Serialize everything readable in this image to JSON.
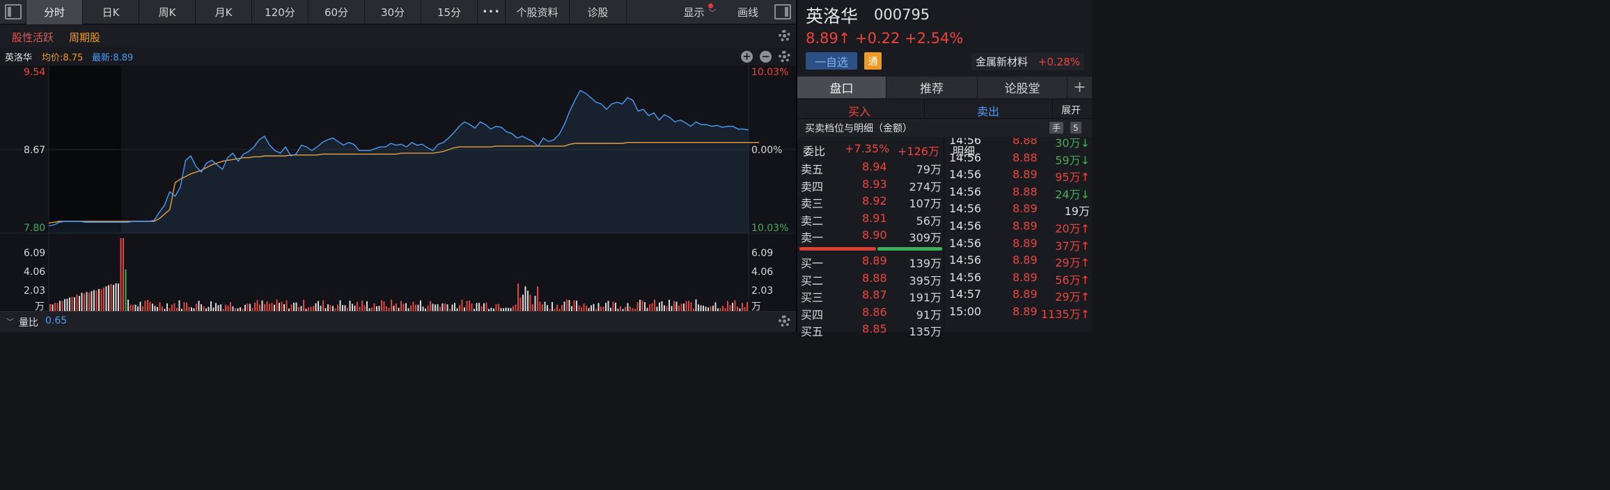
{
  "toolbar": {
    "tabs": [
      "分时",
      "日K",
      "周K",
      "月K",
      "120分",
      "60分",
      "30分",
      "15分"
    ],
    "more": "•••",
    "links": [
      "个股资料",
      "诊股"
    ],
    "display": "显示",
    "draw": "画线"
  },
  "tags": [
    "股性活跃",
    "周期股"
  ],
  "chart_header": {
    "name": "英洛华",
    "avg_label": "均价:8.75",
    "latest_label": "最新:8.89"
  },
  "axes": {
    "price_top": "9.54",
    "price_mid": "8.67",
    "price_low": "7.80",
    "pct_top": "10.03%",
    "pct_mid": "0.00%",
    "pct_low": "10.03%",
    "vol_left": [
      "6.09",
      "4.06",
      "2.03",
      "万"
    ],
    "vol_right": [
      "6.09",
      "4.06",
      "2.03",
      "万"
    ]
  },
  "bottom": {
    "label": "量比",
    "value": "0.65"
  },
  "stock": {
    "name": "英洛华",
    "code": "000795",
    "price_line": "8.89↑ +0.22 +2.54%",
    "fav_button": "一自选",
    "tong_badge": "通",
    "sector_name": "金属新材料",
    "sector_change": "+0.28%"
  },
  "right_tabs": [
    "盘口",
    "推荐",
    "论股堂"
  ],
  "add_tab": "+",
  "trade": {
    "buy": "买入",
    "sell": "卖出",
    "expand": "展开"
  },
  "book_head": {
    "title": "买卖档位与明细（金额）",
    "hand": "手",
    "five": "5"
  },
  "ratio": {
    "label": "委比",
    "pct": "+7.35%",
    "amount": "+126万",
    "detail": "明细"
  },
  "asks": [
    {
      "label": "卖五",
      "price": "8.94",
      "amount": "79万"
    },
    {
      "label": "卖四",
      "price": "8.93",
      "amount": "274万"
    },
    {
      "label": "卖三",
      "price": "8.92",
      "amount": "107万"
    },
    {
      "label": "卖二",
      "price": "8.91",
      "amount": "56万"
    },
    {
      "label": "卖一",
      "price": "8.90",
      "amount": "309万"
    }
  ],
  "bids": [
    {
      "label": "买一",
      "price": "8.89",
      "amount": "139万"
    },
    {
      "label": "买二",
      "price": "8.88",
      "amount": "395万"
    },
    {
      "label": "买三",
      "price": "8.87",
      "amount": "191万"
    },
    {
      "label": "买四",
      "price": "8.86",
      "amount": "91万"
    },
    {
      "label": "买五",
      "price": "8.85",
      "amount": "135万"
    }
  ],
  "ticks": [
    {
      "time": "14:56",
      "price": "8.88",
      "amount": "30万",
      "dir": "↓",
      "color": "#f0433a",
      "acolor": "#3fae5a"
    },
    {
      "time": "14:56",
      "price": "8.88",
      "amount": "59万",
      "dir": "↓",
      "color": "#f0433a",
      "acolor": "#3fae5a"
    },
    {
      "time": "14:56",
      "price": "8.89",
      "amount": "95万",
      "dir": "↑",
      "color": "#f0433a",
      "acolor": "#f0433a"
    },
    {
      "time": "14:56",
      "price": "8.88",
      "amount": "24万",
      "dir": "↓",
      "color": "#f0433a",
      "acolor": "#3fae5a"
    },
    {
      "time": "14:56",
      "price": "8.89",
      "amount": "19万",
      "dir": "",
      "color": "#f0433a",
      "acolor": "#e0e0e0"
    },
    {
      "time": "14:56",
      "price": "8.89",
      "amount": "20万",
      "dir": "↑",
      "color": "#f0433a",
      "acolor": "#f0433a"
    },
    {
      "time": "14:56",
      "price": "8.89",
      "amount": "37万",
      "dir": "↑",
      "color": "#f0433a",
      "acolor": "#f0433a"
    },
    {
      "time": "14:56",
      "price": "8.89",
      "amount": "29万",
      "dir": "↑",
      "color": "#f0433a",
      "acolor": "#f0433a"
    },
    {
      "time": "14:56",
      "price": "8.89",
      "amount": "56万",
      "dir": "↑",
      "color": "#f0433a",
      "acolor": "#f0433a"
    },
    {
      "time": "14:57",
      "price": "8.89",
      "amount": "29万",
      "dir": "↑",
      "color": "#f0433a",
      "acolor": "#f0433a"
    },
    {
      "time": "15:00",
      "price": "8.89",
      "amount": "1135万",
      "dir": "↑",
      "color": "#f0433a",
      "acolor": "#f0433a"
    }
  ],
  "colors": {
    "up": "#f0433a",
    "down": "#3fae5a",
    "line": "#4a9cf5",
    "avg": "#e8a040",
    "orange": "#f09a26",
    "blue": "#4a9cf5"
  },
  "chart_data": {
    "type": "line",
    "price_range": [
      7.8,
      9.54
    ],
    "prev_close": 8.67,
    "series": [
      {
        "name": "最新",
        "values": [
          7.82,
          7.83,
          7.86,
          7.87,
          7.87,
          7.87,
          7.87,
          7.86,
          7.86,
          7.86,
          7.86,
          7.86,
          7.86,
          7.86,
          7.86,
          7.86,
          7.87,
          7.87,
          7.87,
          7.87,
          7.88,
          7.97,
          8.05,
          8.2,
          8.15,
          8.25,
          8.55,
          8.6,
          8.48,
          8.42,
          8.52,
          8.55,
          8.5,
          8.45,
          8.58,
          8.63,
          8.54,
          8.62,
          8.65,
          8.7,
          8.78,
          8.82,
          8.72,
          8.66,
          8.63,
          8.7,
          8.6,
          8.62,
          8.72,
          8.7,
          8.66,
          8.7,
          8.75,
          8.78,
          8.8,
          8.76,
          8.72,
          8.75,
          8.73,
          8.66,
          8.66,
          8.66,
          8.68,
          8.7,
          8.7,
          8.74,
          8.72,
          8.73,
          8.7,
          8.75,
          8.72,
          8.73,
          8.69,
          8.66,
          8.73,
          8.75,
          8.8,
          8.86,
          8.93,
          8.98,
          8.95,
          8.91,
          8.98,
          8.95,
          8.9,
          8.93,
          8.92,
          8.87,
          8.85,
          8.8,
          8.82,
          8.79,
          8.76,
          8.71,
          8.8,
          8.76,
          8.78,
          8.84,
          8.95,
          9.1,
          9.22,
          9.33,
          9.3,
          9.25,
          9.2,
          9.18,
          9.12,
          9.18,
          9.2,
          9.18,
          9.25,
          9.22,
          9.1,
          9.12,
          9.05,
          9.08,
          9.0,
          9.06,
          9.03,
          8.98,
          9.0,
          8.97,
          8.93,
          8.98,
          8.95,
          8.95,
          8.93,
          8.94,
          8.92,
          8.93,
          8.93,
          8.9,
          8.9,
          8.89
        ]
      },
      {
        "name": "均价",
        "values": [
          7.85,
          7.86,
          7.87,
          7.87,
          7.87,
          7.87,
          7.87,
          7.87,
          7.87,
          7.87,
          7.87,
          7.87,
          7.87,
          7.87,
          7.87,
          7.87,
          7.87,
          7.87,
          7.87,
          7.87,
          7.87,
          7.9,
          7.95,
          8.0,
          8.3,
          8.34,
          8.37,
          8.4,
          8.42,
          8.44,
          8.47,
          8.5,
          8.52,
          8.54,
          8.55,
          8.56,
          8.57,
          8.58,
          8.58,
          8.59,
          8.59,
          8.6,
          8.6,
          8.6,
          8.6,
          8.6,
          8.61,
          8.61,
          8.61,
          8.61,
          8.61,
          8.61,
          8.62,
          8.62,
          8.62,
          8.62,
          8.62,
          8.62,
          8.62,
          8.62,
          8.62,
          8.62,
          8.62,
          8.62,
          8.62,
          8.62,
          8.62,
          8.63,
          8.63,
          8.63,
          8.63,
          8.63,
          8.63,
          8.63,
          8.64,
          8.65,
          8.67,
          8.69,
          8.7,
          8.7,
          8.7,
          8.7,
          8.7,
          8.7,
          8.7,
          8.71,
          8.71,
          8.71,
          8.71,
          8.71,
          8.71,
          8.71,
          8.71,
          8.71,
          8.71,
          8.71,
          8.71,
          8.71,
          8.71,
          8.73,
          8.74,
          8.74,
          8.74,
          8.74,
          8.74,
          8.74,
          8.74,
          8.74,
          8.74,
          8.74,
          8.75,
          8.75,
          8.75,
          8.75,
          8.75,
          8.75,
          8.75,
          8.75,
          8.75,
          8.75,
          8.75,
          8.75,
          8.75,
          8.75,
          8.75,
          8.75,
          8.75,
          8.75,
          8.75,
          8.75,
          8.75,
          8.75,
          8.75,
          8.75,
          8.75,
          8.75
        ]
      }
    ],
    "volume_range": [
      0,
      6.09
    ],
    "volume_unit": "万"
  }
}
